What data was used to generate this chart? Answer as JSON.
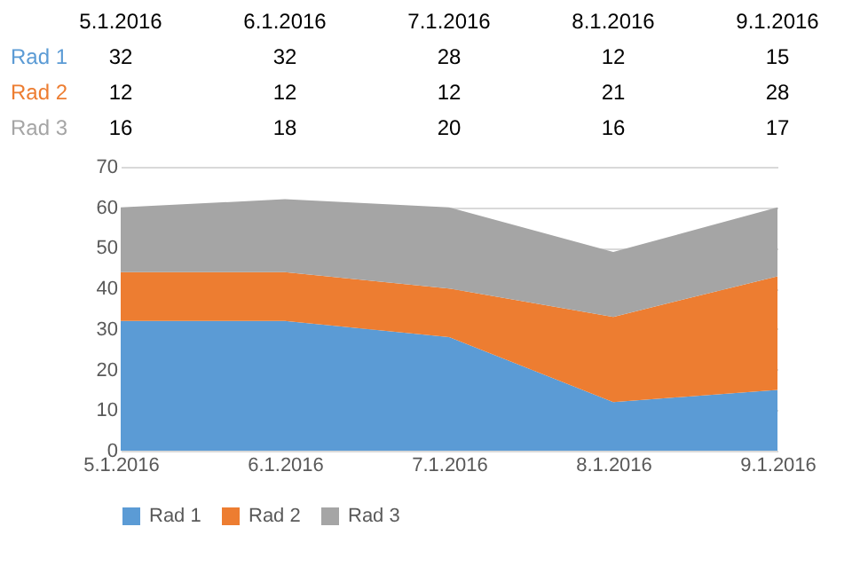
{
  "chart_data": {
    "type": "area",
    "stacked": true,
    "categories": [
      "5.1.2016",
      "6.1.2016",
      "7.1.2016",
      "8.1.2016",
      "9.1.2016"
    ],
    "series": [
      {
        "name": "Rad 1",
        "color": "#5b9bd5",
        "values": [
          32,
          32,
          28,
          12,
          15
        ]
      },
      {
        "name": "Rad 2",
        "color": "#ed7d31",
        "values": [
          12,
          12,
          12,
          21,
          28
        ]
      },
      {
        "name": "Rad 3",
        "color": "#a5a5a5",
        "values": [
          16,
          18,
          20,
          16,
          17
        ]
      }
    ],
    "ylim": [
      0,
      70
    ],
    "yticks": [
      0,
      10,
      20,
      30,
      40,
      50,
      60,
      70
    ],
    "grid": "y",
    "legend": "bottom",
    "data_labels": true
  }
}
